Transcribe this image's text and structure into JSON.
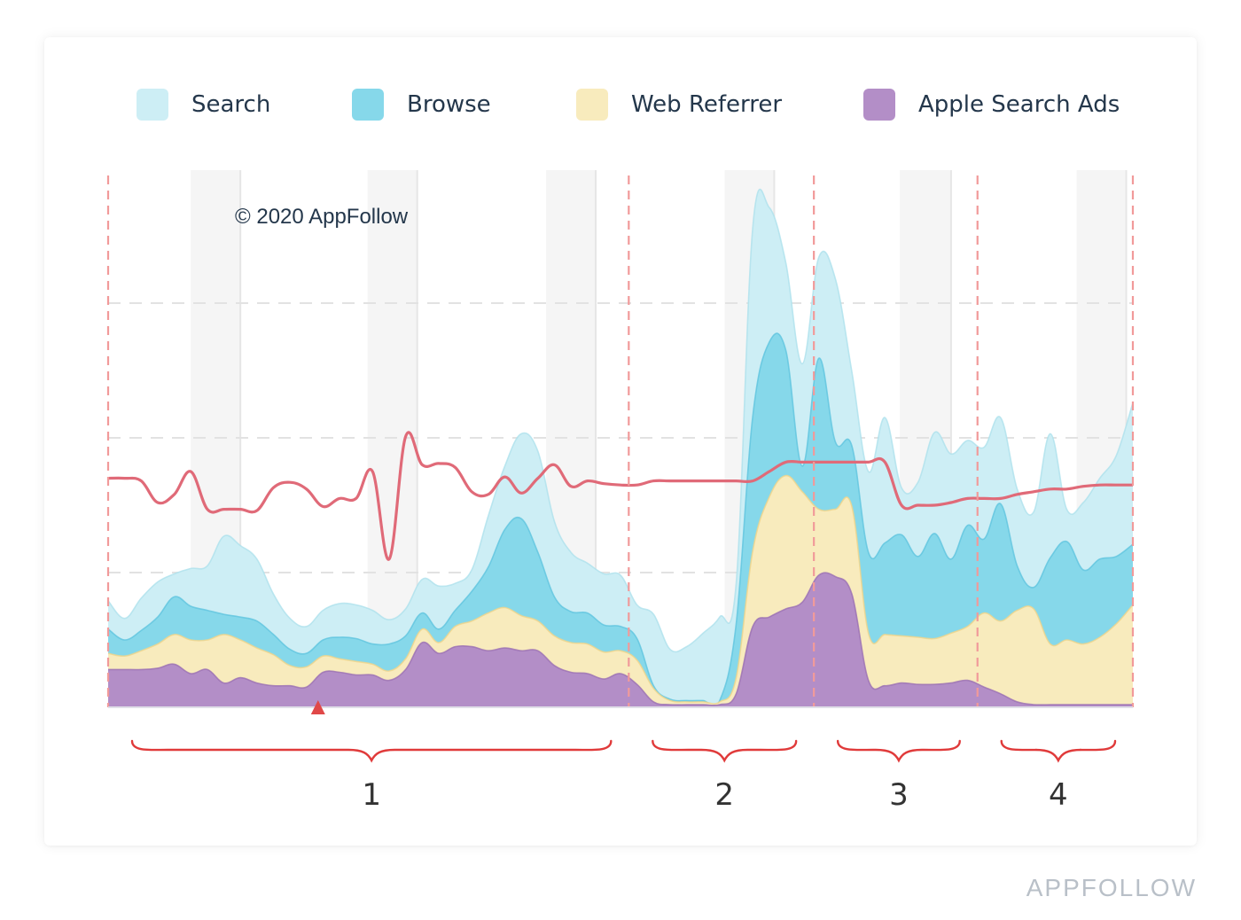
{
  "brand": "APPFOLLOW",
  "copyright": "© 2020 AppFollow",
  "colors": {
    "search": "#cdeef5",
    "search_line": "#aee1ec",
    "browse": "#86d8ea",
    "browse_line": "#5fc4de",
    "web": "#f8ebbd",
    "web_line": "#f0d48a",
    "ads": "#b38ec7",
    "ads_line": "#9a6fb3",
    "trend": "#e06a78",
    "bracket": "#e03a3a",
    "divider": "#f19a9a"
  },
  "chart_data": {
    "type": "area",
    "stacked": true,
    "title": "",
    "xlabel": "",
    "ylabel": "",
    "ylim": [
      0,
      4
    ],
    "x": [
      0,
      1,
      2,
      3,
      4,
      5,
      6,
      7,
      8,
      9,
      10,
      11,
      12,
      13,
      14,
      15,
      16,
      17,
      18,
      19,
      20,
      21,
      22,
      23,
      24,
      25,
      26,
      27,
      28,
      29,
      30,
      31,
      32,
      33,
      34,
      35,
      36,
      37,
      38,
      39,
      40,
      41,
      42,
      43,
      44,
      45,
      46,
      47,
      48,
      49,
      50,
      51,
      52,
      53,
      54,
      55,
      56,
      57,
      58,
      59,
      60,
      61,
      62
    ],
    "series": [
      {
        "name": "Apple Search Ads",
        "key": "ads",
        "values": [
          0.28,
          0.28,
          0.28,
          0.29,
          0.32,
          0.25,
          0.28,
          0.18,
          0.22,
          0.18,
          0.16,
          0.16,
          0.15,
          0.26,
          0.26,
          0.24,
          0.24,
          0.2,
          0.28,
          0.48,
          0.4,
          0.45,
          0.45,
          0.42,
          0.44,
          0.42,
          0.42,
          0.31,
          0.26,
          0.25,
          0.21,
          0.25,
          0.17,
          0.04,
          0.02,
          0.02,
          0.02,
          0.02,
          0.1,
          0.6,
          0.67,
          0.73,
          0.78,
          0.98,
          0.97,
          0.84,
          0.2,
          0.16,
          0.18,
          0.17,
          0.17,
          0.18,
          0.2,
          0.15,
          0.1,
          0.04,
          0.02,
          0.02,
          0.02,
          0.02,
          0.02,
          0.02,
          0.02
        ]
      },
      {
        "name": "Web Referrer",
        "key": "web",
        "values": [
          0.12,
          0.1,
          0.14,
          0.18,
          0.22,
          0.25,
          0.22,
          0.36,
          0.28,
          0.26,
          0.23,
          0.15,
          0.15,
          0.12,
          0.1,
          0.1,
          0.08,
          0.07,
          0.08,
          0.1,
          0.08,
          0.15,
          0.19,
          0.28,
          0.3,
          0.26,
          0.22,
          0.22,
          0.22,
          0.22,
          0.2,
          0.17,
          0.18,
          0.1,
          0.03,
          0.02,
          0.02,
          0.02,
          0.12,
          0.56,
          0.89,
          0.99,
          0.82,
          0.49,
          0.5,
          0.65,
          0.35,
          0.38,
          0.35,
          0.35,
          0.34,
          0.37,
          0.4,
          0.55,
          0.54,
          0.68,
          0.71,
          0.45,
          0.48,
          0.45,
          0.5,
          0.6,
          0.74
        ]
      },
      {
        "name": "Browse",
        "key": "browse",
        "values": [
          0.18,
          0.12,
          0.15,
          0.2,
          0.28,
          0.25,
          0.22,
          0.15,
          0.17,
          0.2,
          0.15,
          0.12,
          0.1,
          0.12,
          0.16,
          0.17,
          0.15,
          0.2,
          0.17,
          0.12,
          0.1,
          0.12,
          0.22,
          0.34,
          0.58,
          0.72,
          0.51,
          0.29,
          0.23,
          0.23,
          0.2,
          0.18,
          0.16,
          0.02,
          0.01,
          0.01,
          0.01,
          0.01,
          0.4,
          1.0,
          1.15,
          0.93,
          0.19,
          1.12,
          0.5,
          0.45,
          0.6,
          0.68,
          0.75,
          0.6,
          0.78,
          0.55,
          0.75,
          0.55,
          0.87,
          0.33,
          0.16,
          0.64,
          0.73,
          0.55,
          0.58,
          0.5,
          0.45
        ]
      },
      {
        "name": "Search",
        "key": "search",
        "values": [
          0.21,
          0.16,
          0.24,
          0.26,
          0.17,
          0.28,
          0.33,
          0.58,
          0.53,
          0.46,
          0.3,
          0.23,
          0.2,
          0.22,
          0.25,
          0.25,
          0.25,
          0.18,
          0.2,
          0.25,
          0.32,
          0.2,
          0.16,
          0.38,
          0.47,
          0.63,
          0.75,
          0.56,
          0.44,
          0.37,
          0.38,
          0.38,
          0.25,
          0.53,
          0.37,
          0.4,
          0.5,
          0.62,
          0.3,
          1.4,
          1.0,
          0.65,
          0.76,
          0.75,
          1.21,
          0.55,
          0.6,
          0.93,
          0.35,
          0.55,
          0.75,
          0.78,
          0.63,
          0.68,
          0.64,
          0.57,
          0.56,
          0.92,
          0.24,
          0.5,
          0.6,
          0.75,
          1.05
        ]
      }
    ],
    "trend_line": {
      "name": "trend",
      "values": [
        1.7,
        1.7,
        1.68,
        1.52,
        1.58,
        1.75,
        1.47,
        1.47,
        1.47,
        1.46,
        1.63,
        1.67,
        1.62,
        1.49,
        1.55,
        1.55,
        1.75,
        1.1,
        2.01,
        1.8,
        1.81,
        1.78,
        1.6,
        1.58,
        1.71,
        1.59,
        1.7,
        1.8,
        1.64,
        1.68,
        1.66,
        1.65,
        1.65,
        1.68,
        1.68,
        1.68,
        1.68,
        1.68,
        1.68,
        1.68,
        1.75,
        1.82,
        1.82,
        1.82,
        1.82,
        1.82,
        1.82,
        1.82,
        1.5,
        1.5,
        1.5,
        1.52,
        1.55,
        1.55,
        1.55,
        1.58,
        1.6,
        1.62,
        1.62,
        1.64,
        1.65,
        1.65,
        1.65
      ]
    },
    "legend": [
      "Search",
      "Browse",
      "Web Referrer",
      "Apple Search Ads"
    ],
    "legend_position": "top",
    "grid": true,
    "periods": [
      {
        "label": "1",
        "start": 0,
        "end": 31.5
      },
      {
        "label": "2",
        "start": 31.5,
        "end": 42.7
      },
      {
        "label": "3",
        "start": 42.7,
        "end": 52.6
      },
      {
        "label": "4",
        "start": 52.6,
        "end": 62.7
      }
    ],
    "weekend_bands": [
      [
        5,
        8
      ],
      [
        15.7,
        18.7
      ],
      [
        26.5,
        29.5
      ],
      [
        37.3,
        40.3
      ],
      [
        47.9,
        51
      ],
      [
        58.6,
        61.6
      ]
    ],
    "markers": [
      {
        "type": "triangle",
        "x": 12.7
      }
    ]
  }
}
